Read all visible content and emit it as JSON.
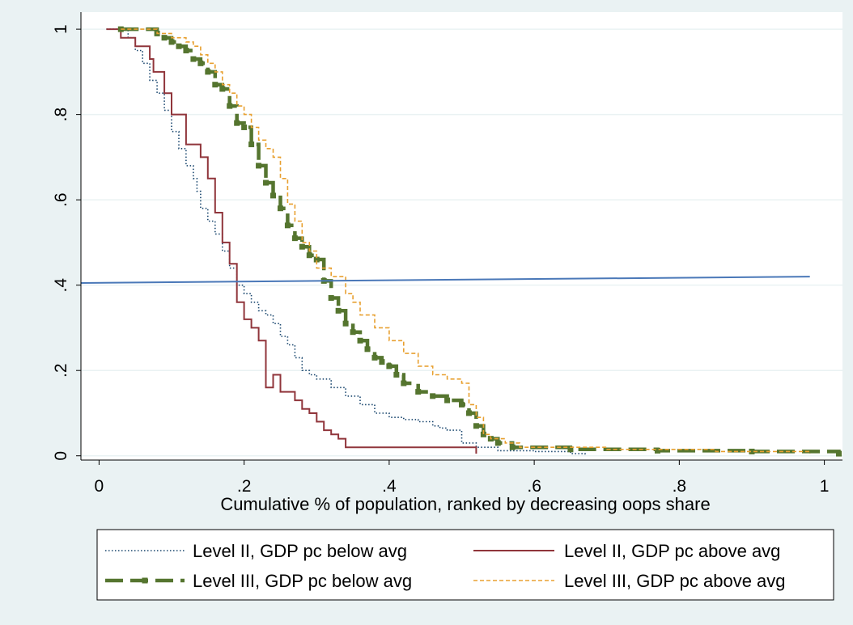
{
  "chart_data": {
    "type": "line",
    "xlabel": "Cumulative % of population, ranked by decreasing oops share",
    "ylabel": "",
    "xlim": [
      -0.025,
      1.025
    ],
    "ylim": [
      -0.01,
      1.04
    ],
    "x_ticks": [
      {
        "value": 0,
        "label": "0"
      },
      {
        "value": 0.2,
        "label": ".2"
      },
      {
        "value": 0.4,
        "label": ".4"
      },
      {
        "value": 0.6,
        "label": ".6"
      },
      {
        "value": 0.8,
        "label": ".8"
      },
      {
        "value": 1,
        "label": "1"
      }
    ],
    "y_ticks": [
      {
        "value": 0,
        "label": "0"
      },
      {
        "value": 0.2,
        "label": ".2"
      },
      {
        "value": 0.4,
        "label": ".4"
      },
      {
        "value": 0.6,
        "label": ".6"
      },
      {
        "value": 0.8,
        "label": ".8"
      },
      {
        "value": 1,
        "label": "1"
      }
    ],
    "grid": "horizontal",
    "legend_placement": "bottom",
    "series": [
      {
        "name": "Level II, GDP pc below avg",
        "color": "#1a476f",
        "style": "dotted",
        "x": [
          0.01,
          0.04,
          0.05,
          0.06,
          0.07,
          0.08,
          0.09,
          0.1,
          0.11,
          0.12,
          0.13,
          0.135,
          0.14,
          0.15,
          0.16,
          0.17,
          0.18,
          0.19,
          0.2,
          0.21,
          0.22,
          0.23,
          0.24,
          0.25,
          0.26,
          0.27,
          0.28,
          0.29,
          0.3,
          0.32,
          0.34,
          0.36,
          0.38,
          0.4,
          0.42,
          0.44,
          0.46,
          0.47,
          0.48,
          0.5,
          0.52,
          0.55,
          0.6,
          0.65,
          0.67
        ],
        "y": [
          1.0,
          0.98,
          0.95,
          0.92,
          0.88,
          0.85,
          0.81,
          0.76,
          0.72,
          0.68,
          0.65,
          0.62,
          0.58,
          0.55,
          0.52,
          0.48,
          0.44,
          0.4,
          0.38,
          0.36,
          0.34,
          0.33,
          0.31,
          0.28,
          0.26,
          0.23,
          0.2,
          0.19,
          0.18,
          0.16,
          0.14,
          0.12,
          0.1,
          0.09,
          0.085,
          0.08,
          0.07,
          0.065,
          0.06,
          0.03,
          0.02,
          0.012,
          0.01,
          0.005,
          0.0
        ]
      },
      {
        "name": "Level II, GDP pc above avg",
        "color": "#90353b",
        "style": "solid",
        "x": [
          0.01,
          0.03,
          0.05,
          0.07,
          0.075,
          0.09,
          0.1,
          0.12,
          0.14,
          0.15,
          0.16,
          0.17,
          0.18,
          0.19,
          0.2,
          0.21,
          0.22,
          0.23,
          0.23,
          0.24,
          0.25,
          0.27,
          0.28,
          0.29,
          0.3,
          0.31,
          0.32,
          0.33,
          0.34,
          0.52
        ],
        "y": [
          1.0,
          0.98,
          0.96,
          0.93,
          0.9,
          0.85,
          0.8,
          0.73,
          0.7,
          0.65,
          0.57,
          0.5,
          0.45,
          0.36,
          0.32,
          0.3,
          0.27,
          0.21,
          0.16,
          0.19,
          0.15,
          0.13,
          0.11,
          0.1,
          0.08,
          0.06,
          0.05,
          0.04,
          0.02,
          0.005
        ]
      },
      {
        "name": "Level III, GDP pc below avg",
        "color": "#55752f",
        "style": "dashed",
        "x": [
          0.03,
          0.08,
          0.09,
          0.1,
          0.11,
          0.12,
          0.13,
          0.14,
          0.15,
          0.16,
          0.17,
          0.18,
          0.19,
          0.2,
          0.21,
          0.22,
          0.23,
          0.24,
          0.25,
          0.26,
          0.27,
          0.28,
          0.29,
          0.3,
          0.31,
          0.32,
          0.33,
          0.34,
          0.35,
          0.36,
          0.37,
          0.38,
          0.39,
          0.4,
          0.41,
          0.42,
          0.44,
          0.46,
          0.48,
          0.5,
          0.51,
          0.52,
          0.53,
          0.54,
          0.55,
          0.57,
          0.65,
          0.77,
          0.9,
          1.02
        ],
        "y": [
          1.0,
          0.99,
          0.98,
          0.97,
          0.96,
          0.95,
          0.93,
          0.92,
          0.9,
          0.87,
          0.86,
          0.82,
          0.78,
          0.77,
          0.73,
          0.68,
          0.64,
          0.61,
          0.58,
          0.54,
          0.51,
          0.49,
          0.47,
          0.46,
          0.41,
          0.37,
          0.34,
          0.31,
          0.29,
          0.27,
          0.25,
          0.23,
          0.22,
          0.21,
          0.19,
          0.17,
          0.15,
          0.14,
          0.13,
          0.12,
          0.1,
          0.07,
          0.05,
          0.04,
          0.03,
          0.02,
          0.015,
          0.012,
          0.01,
          0.005
        ]
      },
      {
        "name": "Level III, GDP pc above avg",
        "color": "#e8a030",
        "style": "shortdash",
        "x": [
          0.03,
          0.08,
          0.1,
          0.12,
          0.13,
          0.14,
          0.15,
          0.16,
          0.17,
          0.18,
          0.19,
          0.2,
          0.21,
          0.22,
          0.23,
          0.24,
          0.25,
          0.26,
          0.27,
          0.28,
          0.29,
          0.3,
          0.32,
          0.34,
          0.35,
          0.36,
          0.38,
          0.4,
          0.42,
          0.44,
          0.46,
          0.48,
          0.5,
          0.51,
          0.52,
          0.53,
          0.54,
          0.56,
          0.58,
          0.7,
          0.85,
          0.98
        ],
        "y": [
          1.0,
          0.99,
          0.98,
          0.97,
          0.96,
          0.94,
          0.92,
          0.9,
          0.87,
          0.85,
          0.82,
          0.8,
          0.77,
          0.74,
          0.72,
          0.7,
          0.65,
          0.59,
          0.55,
          0.5,
          0.48,
          0.44,
          0.42,
          0.38,
          0.36,
          0.33,
          0.3,
          0.27,
          0.24,
          0.21,
          0.19,
          0.18,
          0.17,
          0.12,
          0.09,
          0.05,
          0.04,
          0.03,
          0.02,
          0.015,
          0.01,
          0.005
        ]
      },
      {
        "name": "",
        "color": "#4a78b8",
        "style": "solid",
        "x": [
          -0.025,
          0.98
        ],
        "y": [
          0.405,
          0.42
        ]
      }
    ]
  }
}
